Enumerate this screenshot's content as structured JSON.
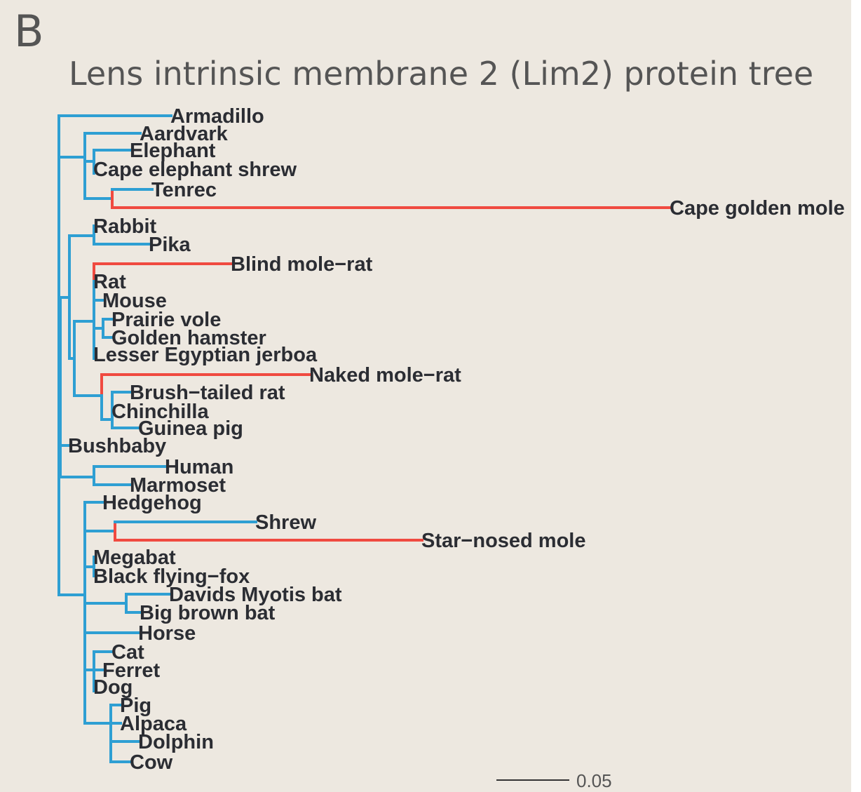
{
  "panel_letter": "B",
  "title": "Lens intrinsic membrane 2 (Lim2) protein tree",
  "colors": {
    "background": "#ede8e0",
    "normal_branch": "#2e9fd3",
    "highlight_branch": "#f04a40",
    "label": "#2b2d33"
  },
  "taxa": [
    {
      "name": "Armadillo",
      "highlight": false
    },
    {
      "name": "Aardvark",
      "highlight": false
    },
    {
      "name": "Elephant",
      "highlight": false
    },
    {
      "name": "Cape elephant shrew",
      "highlight": false
    },
    {
      "name": "Tenrec",
      "highlight": false
    },
    {
      "name": "Cape golden mole",
      "highlight": true
    },
    {
      "name": "Rabbit",
      "highlight": false
    },
    {
      "name": "Pika",
      "highlight": false
    },
    {
      "name": "Blind mole−rat",
      "highlight": true
    },
    {
      "name": "Rat",
      "highlight": false
    },
    {
      "name": "Mouse",
      "highlight": false
    },
    {
      "name": "Prairie vole",
      "highlight": false
    },
    {
      "name": "Golden hamster",
      "highlight": false
    },
    {
      "name": "Lesser Egyptian jerboa",
      "highlight": false
    },
    {
      "name": "Naked mole−rat",
      "highlight": true
    },
    {
      "name": "Brush−tailed rat",
      "highlight": false
    },
    {
      "name": "Chinchilla",
      "highlight": false
    },
    {
      "name": "Guinea pig",
      "highlight": false
    },
    {
      "name": "Bushbaby",
      "highlight": false
    },
    {
      "name": "Human",
      "highlight": false
    },
    {
      "name": "Marmoset",
      "highlight": false
    },
    {
      "name": "Hedgehog",
      "highlight": false
    },
    {
      "name": "Shrew",
      "highlight": false
    },
    {
      "name": "Star−nosed mole",
      "highlight": true
    },
    {
      "name": "Megabat",
      "highlight": false
    },
    {
      "name": "Black flying−fox",
      "highlight": false
    },
    {
      "name": "Davids Myotis bat",
      "highlight": false
    },
    {
      "name": "Big brown bat",
      "highlight": false
    },
    {
      "name": "Horse",
      "highlight": false
    },
    {
      "name": "Cat",
      "highlight": false
    },
    {
      "name": "Ferret",
      "highlight": false
    },
    {
      "name": "Dog",
      "highlight": false
    },
    {
      "name": "Pig",
      "highlight": false
    },
    {
      "name": "Alpaca",
      "highlight": false
    },
    {
      "name": "Dolphin",
      "highlight": false
    },
    {
      "name": "Cow",
      "highlight": false
    }
  ],
  "scale_bar": {
    "label": "0.05"
  }
}
